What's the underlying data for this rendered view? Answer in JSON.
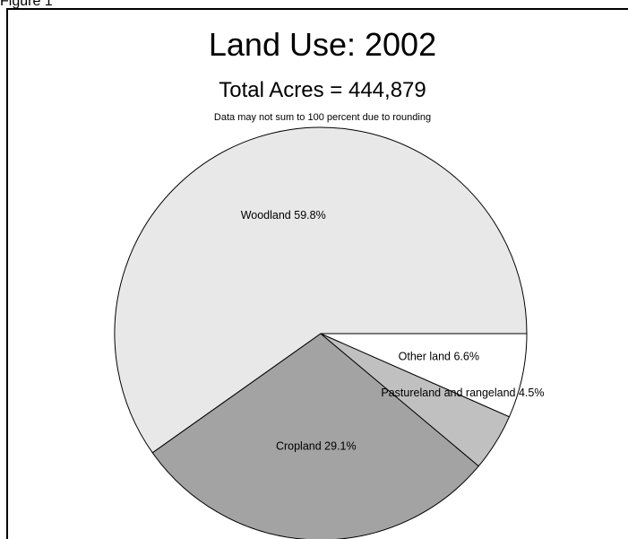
{
  "figure_label": "Figure 1",
  "chart_data": {
    "type": "pie",
    "title": "Land Use: 2002",
    "subtitle": "Total Acres = 444,879",
    "note": "Data may not sum to 100 percent due to rounding",
    "start_angle_deg": 0,
    "direction": "counterclockwise",
    "slices": [
      {
        "name": "Woodland",
        "label": "Woodland 59.8%",
        "value": 59.8,
        "color": "#e8e8e8"
      },
      {
        "name": "Cropland",
        "label": "Cropland 29.1%",
        "value": 29.1,
        "color": "#a3a3a3"
      },
      {
        "name": "Pastureland and rangeland",
        "label": "Pastureland and rangeland 4.5%",
        "value": 4.5,
        "color": "#c0c0c0"
      },
      {
        "name": "Other land",
        "label": "Other land 6.6%",
        "value": 6.6,
        "color": "#ffffff"
      }
    ]
  }
}
